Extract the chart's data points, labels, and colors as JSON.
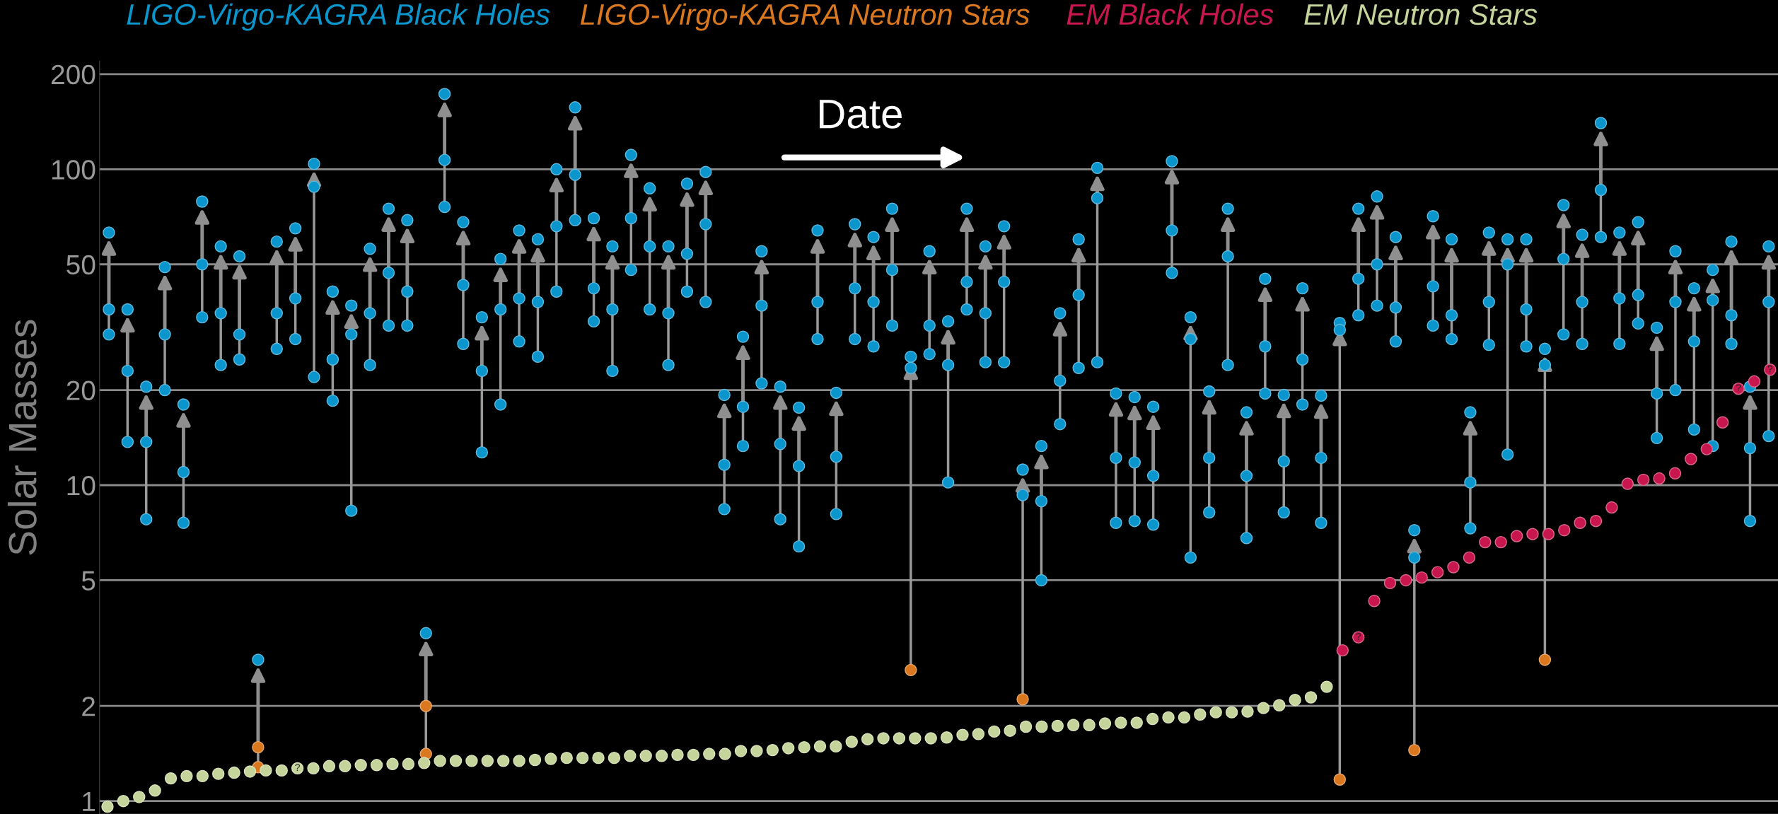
{
  "chart_data": [
    {
      "type": "scatter",
      "ylabel": "Solar Masses",
      "log": true,
      "grid": "y",
      "legend": "top",
      "tick_labels": "y",
      "marker": "circle",
      "ylim": [
        0.91,
        220
      ],
      "yticks": [
        1,
        2,
        5,
        10,
        20,
        50,
        100,
        200
      ],
      "annotations": [
        "Date"
      ],
      "categories": [
        null,
        null,
        null,
        null,
        null,
        null,
        null,
        null,
        null,
        null,
        null,
        null,
        null,
        null,
        null,
        null,
        null,
        null,
        null,
        null,
        null,
        null,
        null,
        null,
        null,
        null,
        null,
        null,
        null,
        null,
        null,
        null,
        null,
        null,
        null,
        null,
        null,
        null,
        null,
        null,
        null,
        null,
        null,
        null,
        null,
        null,
        null,
        null,
        null,
        null,
        null,
        null,
        null,
        null,
        null,
        null,
        null,
        null,
        null,
        null,
        null,
        null,
        null,
        null,
        null,
        null,
        null,
        null,
        null,
        null,
        null,
        null,
        null,
        null,
        null,
        null,
        null,
        null,
        null,
        null,
        null,
        null,
        null,
        null,
        null,
        null,
        null,
        null,
        null,
        null
      ],
      "series": [
        {
          "name": "LIGO-Virgo-KAGRA Black Holes",
          "color": "#0a95cc",
          "values": [
            63,
            36,
            20.5,
            49,
            18,
            79,
            57,
            53,
            2.8,
            59,
            65,
            104,
            41,
            37,
            56,
            75,
            69,
            3.4,
            173,
            68,
            34,
            52,
            64,
            60,
            100,
            157,
            70,
            57,
            111,
            87,
            57,
            90,
            98,
            19.3,
            29.5,
            55,
            20.5,
            17.6,
            64,
            19.6,
            67,
            61,
            75,
            25.5,
            55,
            33,
            75,
            57,
            66,
            11.2,
            13.3,
            35,
            60,
            101,
            19.5,
            19,
            17.7,
            106,
            34,
            19.8,
            75,
            17,
            45,
            19.3,
            42,
            19.2,
            32.6,
            75,
            82,
            61,
            7.2,
            71,
            60,
            17,
            63,
            60,
            60,
            27,
            77,
            62,
            140,
            63,
            68,
            31.5,
            55,
            42,
            48,
            59,
            20.5,
            57
          ]
        },
        {
          "color": "#0a95cc",
          "values": [
            36,
            23,
            13.7,
            30,
            11,
            50,
            35,
            30,
            null,
            35,
            39,
            88,
            25,
            30,
            35,
            47,
            41,
            null,
            107,
            43,
            23,
            36,
            39,
            38,
            66,
            96,
            42,
            36,
            70,
            57,
            35,
            54,
            67,
            11.6,
            17.7,
            37,
            13.5,
            11.5,
            38,
            12.3,
            42,
            38,
            48,
            23.5,
            32,
            24,
            44,
            35,
            44,
            9.3,
            8.9,
            21.4,
            40,
            81,
            12.2,
            11.8,
            10.7,
            64,
            29,
            12.2,
            53,
            10.7,
            27.5,
            11.9,
            25,
            12.2,
            31,
            45,
            50,
            36.5,
            5.9,
            42.6,
            34.5,
            10.2,
            38,
            50,
            36,
            24,
            52,
            38,
            86,
            39,
            40,
            19.5,
            38,
            28.5,
            38.5,
            34.5,
            13.1,
            38
          ]
        },
        {
          "color": "#0a95cc",
          "values": [
            30,
            13.7,
            7.8,
            20,
            7.6,
            34,
            24,
            25,
            null,
            27,
            29,
            22,
            18.5,
            8.3,
            24,
            32,
            32,
            null,
            76,
            28,
            12.7,
            18,
            28.5,
            25.5,
            41,
            69,
            33,
            23,
            48,
            36,
            24,
            41,
            38,
            8.4,
            13.3,
            21,
            7.8,
            6.4,
            29,
            8.1,
            29,
            27.5,
            32,
            null,
            26,
            10.2,
            36,
            24.5,
            24.5,
            null,
            5,
            15.6,
            23.5,
            24.5,
            7.6,
            7.7,
            7.5,
            47,
            5.9,
            8.2,
            24,
            6.8,
            19.5,
            8.2,
            18,
            7.6,
            null,
            34.5,
            37,
            28.5,
            null,
            32,
            29,
            7.3,
            27.8,
            12.5,
            27.5,
            null,
            30,
            28,
            61,
            28,
            32.5,
            14.1,
            20,
            15,
            13.3,
            28,
            7.7,
            14.3
          ]
        },
        {
          "name": "LIGO-Virgo-KAGRA Neutron Stars",
          "color": "#d9781e",
          "values": [
            null,
            null,
            null,
            null,
            null,
            null,
            null,
            null,
            1.28,
            null,
            null,
            null,
            null,
            null,
            null,
            null,
            null,
            1.41,
            null,
            null,
            null,
            null,
            null,
            null,
            null,
            null,
            null,
            null,
            null,
            null,
            null,
            null,
            null,
            null,
            null,
            null,
            null,
            null,
            null,
            null,
            null,
            null,
            null,
            2.6,
            null,
            null,
            null,
            null,
            null,
            2.1,
            null,
            null,
            null,
            null,
            null,
            null,
            null,
            null,
            null,
            null,
            null,
            null,
            null,
            null,
            null,
            null,
            1.17,
            null,
            null,
            null,
            1.45,
            null,
            null,
            null,
            null,
            null,
            null,
            2.8,
            null,
            null,
            null,
            null,
            null,
            null,
            null,
            null,
            null,
            null,
            null,
            null
          ]
        },
        {
          "color": "#d9781e",
          "values": [
            null,
            null,
            null,
            null,
            null,
            null,
            null,
            null,
            1.48,
            null,
            null,
            null,
            null,
            null,
            null,
            null,
            null,
            2.0,
            null,
            null,
            null,
            null,
            null,
            null,
            null,
            null,
            null,
            null,
            null,
            null,
            null,
            null,
            null,
            null,
            null,
            null,
            null,
            null,
            null,
            null,
            null,
            null,
            null,
            null,
            null,
            null,
            null,
            null,
            null,
            null,
            null,
            null,
            null,
            null,
            null,
            null,
            null,
            null,
            null,
            null,
            null,
            null,
            null,
            null,
            null,
            null,
            null,
            null,
            null,
            null,
            null,
            null,
            null,
            null,
            null,
            null,
            null,
            null,
            null,
            null,
            null,
            null,
            null,
            null,
            null,
            null,
            null,
            null,
            null,
            null
          ]
        }
      ]
    },
    {
      "type": "scatter",
      "log": true,
      "legend": "top",
      "tick_labels": false,
      "marker": "circle",
      "ylim": [
        0.91,
        220
      ],
      "yticks": [
        1,
        2,
        5,
        10,
        20,
        50,
        100,
        200
      ],
      "categories": [
        null,
        null,
        null,
        null,
        null,
        null,
        null,
        null,
        null,
        null,
        null,
        null,
        null,
        null,
        null,
        null,
        null,
        null,
        null,
        null,
        null,
        null,
        null,
        null,
        null,
        null,
        null,
        null,
        null,
        null,
        null,
        null,
        null,
        null,
        null,
        null,
        null,
        null,
        null,
        null,
        null,
        null,
        null,
        null,
        null,
        null,
        null,
        null,
        null,
        null,
        null,
        null,
        null,
        null,
        null,
        null,
        null,
        null,
        null,
        null,
        null,
        null,
        null,
        null,
        null,
        null,
        null,
        null,
        null,
        null,
        null,
        null,
        null,
        null,
        null,
        null,
        null,
        null,
        null,
        null,
        null,
        null,
        null,
        null,
        null,
        null,
        null,
        null,
        null,
        null,
        null,
        null,
        null,
        null,
        null,
        null,
        null,
        null,
        null,
        null,
        null,
        null,
        null,
        null,
        null,
        null
      ],
      "series": [
        {
          "name": "EM Black Holes",
          "color": "#c8174f",
          "values": [
            null,
            null,
            null,
            null,
            null,
            null,
            null,
            null,
            null,
            null,
            null,
            null,
            null,
            null,
            null,
            null,
            null,
            null,
            null,
            null,
            null,
            null,
            null,
            null,
            null,
            null,
            null,
            null,
            null,
            null,
            null,
            null,
            null,
            null,
            null,
            null,
            null,
            null,
            null,
            null,
            null,
            null,
            null,
            null,
            null,
            null,
            null,
            null,
            null,
            null,
            null,
            null,
            null,
            null,
            null,
            null,
            null,
            null,
            null,
            null,
            null,
            null,
            null,
            null,
            null,
            null,
            null,
            null,
            null,
            null,
            null,
            null,
            null,
            null,
            null,
            null,
            null,
            null,
            3.0,
            3.3,
            4.3,
            4.9,
            5.0,
            5.1,
            5.3,
            5.5,
            5.9,
            6.6,
            6.6,
            6.9,
            7.0,
            7.0,
            7.2,
            7.6,
            7.7,
            8.5,
            10.1,
            10.4,
            10.5,
            10.9,
            12.1,
            13.0,
            15.8,
            20.2,
            21.3,
            23.2
          ],
          "value_labels": [
            null,
            null,
            null,
            null,
            null,
            null,
            null,
            null,
            null,
            null,
            null,
            null,
            null,
            null,
            null,
            null,
            null,
            null,
            null,
            null,
            null,
            null,
            null,
            null,
            null,
            null,
            null,
            null,
            null,
            null,
            null,
            null,
            null,
            null,
            null,
            null,
            null,
            null,
            null,
            null,
            null,
            null,
            null,
            null,
            null,
            null,
            null,
            null,
            null,
            null,
            null,
            null,
            null,
            null,
            null,
            null,
            null,
            null,
            null,
            null,
            null,
            null,
            null,
            null,
            null,
            null,
            null,
            null,
            null,
            null,
            null,
            null,
            null,
            null,
            null,
            null,
            null,
            null,
            null,
            "?",
            null,
            null,
            null,
            null,
            null,
            null,
            null,
            null,
            null,
            null,
            null,
            null,
            null,
            null,
            null,
            null,
            null,
            null,
            null,
            null,
            null,
            null,
            null,
            "?",
            null,
            "?"
          ]
        },
        {
          "name": "EM Neutron Stars",
          "color": "#c5d49a",
          "values": [
            0.96,
            1.0,
            1.03,
            1.08,
            1.18,
            1.2,
            1.2,
            1.22,
            1.23,
            1.24,
            1.25,
            1.25,
            1.27,
            1.27,
            1.29,
            1.29,
            1.3,
            1.3,
            1.31,
            1.31,
            1.32,
            1.34,
            1.34,
            1.34,
            1.34,
            1.34,
            1.34,
            1.35,
            1.36,
            1.37,
            1.37,
            1.37,
            1.37,
            1.39,
            1.39,
            1.39,
            1.4,
            1.4,
            1.41,
            1.41,
            1.44,
            1.44,
            1.45,
            1.47,
            1.48,
            1.49,
            1.49,
            1.54,
            1.57,
            1.58,
            1.58,
            1.58,
            1.58,
            1.59,
            1.62,
            1.63,
            1.66,
            1.67,
            1.72,
            1.72,
            1.73,
            1.74,
            1.74,
            1.76,
            1.77,
            1.77,
            1.82,
            1.84,
            1.84,
            1.88,
            1.91,
            1.91,
            1.92,
            1.97,
            2.01,
            2.09,
            2.13,
            2.3,
            null,
            null,
            null,
            null,
            null,
            null,
            null,
            null,
            null,
            null,
            null,
            null,
            null,
            null,
            null,
            null,
            null,
            null,
            null,
            null,
            null,
            null,
            null,
            null,
            null,
            null,
            null,
            null
          ],
          "value_labels": [
            null,
            null,
            null,
            null,
            null,
            null,
            null,
            null,
            null,
            null,
            null,
            null,
            "?",
            null,
            null,
            null,
            null,
            null,
            null,
            null,
            null,
            null,
            null,
            null,
            null,
            null,
            null,
            null,
            null,
            null,
            null,
            null,
            null,
            null,
            null,
            null,
            null,
            null,
            null,
            null,
            null,
            null,
            null,
            null,
            null,
            null,
            null,
            null,
            null,
            null,
            null,
            null,
            null,
            null,
            null,
            null,
            null,
            null,
            null,
            null,
            null,
            null,
            null,
            null,
            null,
            null,
            null,
            null,
            null,
            null,
            null,
            null,
            null,
            null,
            null,
            null,
            null,
            null,
            null,
            null,
            null,
            null,
            null,
            null,
            null,
            null,
            null,
            null,
            null,
            null,
            null,
            null,
            null,
            null,
            null,
            null,
            null,
            null,
            null,
            null,
            null,
            null,
            null,
            null,
            null,
            null
          ]
        }
      ]
    }
  ]
}
